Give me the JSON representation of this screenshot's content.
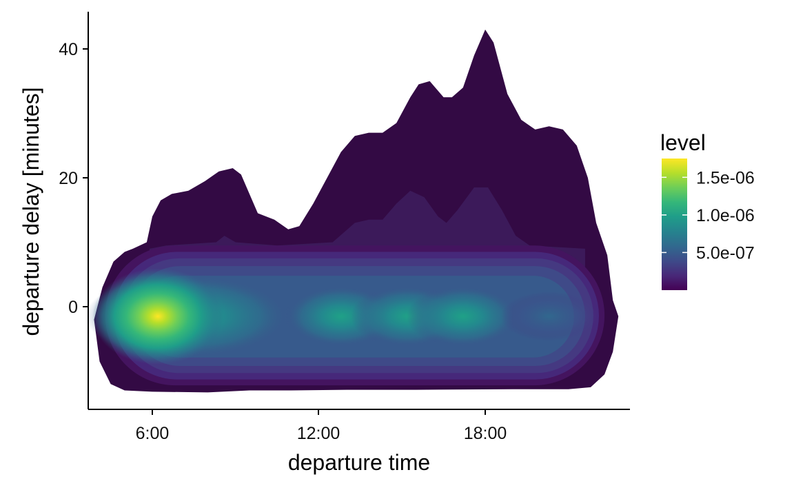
{
  "chart_data": {
    "type": "density-contour",
    "xlabel": "departure time",
    "ylabel": "departure delay [minutes]",
    "x_unit": "hour of day",
    "xlim": [
      3.9,
      23.2
    ],
    "ylim": [
      -16,
      46
    ],
    "x_ticks": [
      {
        "value": 6,
        "label": "6:00"
      },
      {
        "value": 12,
        "label": "12:00"
      },
      {
        "value": 18,
        "label": "18:00"
      }
    ],
    "y_ticks": [
      {
        "value": 0,
        "label": "0"
      },
      {
        "value": 20,
        "label": "20"
      },
      {
        "value": 40,
        "label": "40"
      }
    ],
    "grid": false,
    "legend": {
      "title": "level",
      "position": "right",
      "range": [
        0.0,
        1.75e-06
      ],
      "ticks": [
        {
          "value": 5e-07,
          "label": "5.0e-07"
        },
        {
          "value": 1e-06,
          "label": "1.0e-06"
        },
        {
          "value": 1.5e-06,
          "label": "1.5e-06"
        }
      ],
      "colors": [
        "#440154",
        "#482878",
        "#3e4a89",
        "#31688e",
        "#26828e",
        "#1f9e89",
        "#35b779",
        "#6ece58",
        "#b5de2b",
        "#fde725"
      ]
    },
    "outer_band": {
      "level": 1e-07,
      "color": "#330a44",
      "upper": [
        [
          5.3,
          9
        ],
        [
          5.8,
          10
        ],
        [
          6.0,
          14
        ],
        [
          6.3,
          16.5
        ],
        [
          6.7,
          17.5
        ],
        [
          7.3,
          18
        ],
        [
          7.9,
          19.5
        ],
        [
          8.4,
          21
        ],
        [
          8.9,
          21.5
        ],
        [
          9.2,
          20.5
        ],
        [
          9.8,
          14.5
        ],
        [
          10.4,
          13.5
        ],
        [
          10.9,
          12
        ],
        [
          11.3,
          12.5
        ],
        [
          11.8,
          16
        ],
        [
          12.3,
          20
        ],
        [
          12.8,
          24
        ],
        [
          13.3,
          26.5
        ],
        [
          13.8,
          27
        ],
        [
          14.3,
          27
        ],
        [
          14.8,
          28.5
        ],
        [
          15.3,
          32.5
        ],
        [
          15.6,
          34.5
        ],
        [
          16.0,
          35
        ],
        [
          16.5,
          32.5
        ],
        [
          16.8,
          32.5
        ],
        [
          17.2,
          34
        ],
        [
          17.6,
          39
        ],
        [
          18.0,
          43
        ],
        [
          18.3,
          41
        ],
        [
          18.8,
          33
        ],
        [
          19.3,
          29
        ],
        [
          19.8,
          27.5
        ],
        [
          20.3,
          28
        ],
        [
          20.8,
          27.5
        ],
        [
          21.3,
          25
        ],
        [
          21.7,
          20
        ],
        [
          22.0,
          13
        ],
        [
          22.4,
          8
        ],
        [
          22.6,
          1
        ],
        [
          22.8,
          -1.5
        ]
      ],
      "lower": [
        [
          22.8,
          -1.5
        ],
        [
          22.6,
          -7
        ],
        [
          22.3,
          -10.5
        ],
        [
          21.8,
          -12.5
        ],
        [
          21.0,
          -12.8
        ],
        [
          19.0,
          -12.8
        ],
        [
          15.5,
          -12.9
        ],
        [
          13.0,
          -12.9
        ],
        [
          11.0,
          -13
        ],
        [
          9.5,
          -13
        ],
        [
          8.0,
          -13.3
        ],
        [
          6.0,
          -13.2
        ],
        [
          5.0,
          -13
        ],
        [
          4.5,
          -12
        ],
        [
          4.1,
          -8.5
        ],
        [
          3.9,
          -2
        ],
        [
          4.2,
          3
        ],
        [
          4.6,
          7
        ],
        [
          5.0,
          8.5
        ]
      ]
    },
    "hotspots": [
      {
        "x": 6.2,
        "y": -1.5,
        "peak_level": 1.75e-06
      },
      {
        "x": 12.8,
        "y": -1.5,
        "peak_level": 1e-06
      },
      {
        "x": 15.2,
        "y": -1.5,
        "peak_level": 1e-06
      },
      {
        "x": 17.2,
        "y": -1.5,
        "peak_level": 1e-06
      },
      {
        "x": 20.3,
        "y": -1.5,
        "peak_level": 6.5e-07
      }
    ]
  }
}
